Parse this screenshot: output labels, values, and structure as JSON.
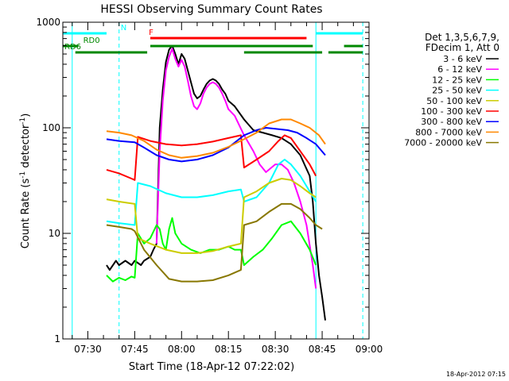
{
  "chart_data": {
    "type": "line",
    "title": "HESSI Observing Summary Count Rates",
    "xlabel": "Start Time (18-Apr-12 07:22:02)",
    "ylabel_main": "Count Rate (s",
    "ylabel_exp1": "-1",
    "ylabel_mid": " detector",
    "ylabel_exp2": "-1",
    "ylabel_end": ")",
    "y_scale": "log",
    "ylim": [
      1,
      1000
    ],
    "xlim": [
      "07:22",
      "09:00"
    ],
    "y_ticks": [
      "1",
      "10",
      "100",
      "1000"
    ],
    "x_ticks": [
      "07:30",
      "07:45",
      "08:00",
      "08:15",
      "08:30",
      "08:45",
      "09:00"
    ],
    "timestamp": "18-Apr-2012 07:15",
    "legend": {
      "header_1": "Det 1,3,5,6,7,9,",
      "header_2": "FDecim 1, Att 0",
      "placement": "right"
    },
    "series": [
      {
        "name": "3 - 6 keV",
        "color": "#000000",
        "points": [
          [
            "07:36",
            5
          ],
          [
            "07:37",
            4.5
          ],
          [
            "07:39",
            5.5
          ],
          [
            "07:40",
            5
          ],
          [
            "07:42",
            5.5
          ],
          [
            "07:44",
            5
          ],
          [
            "07:45",
            5.5
          ],
          [
            "07:47",
            5
          ],
          [
            "07:48",
            5.5
          ],
          [
            "07:50",
            6
          ],
          [
            "07:51",
            7
          ],
          [
            "07:52",
            8
          ],
          [
            "07:53",
            100
          ],
          [
            "07:54",
            230
          ],
          [
            "07:55",
            420
          ],
          [
            "07:56",
            550
          ],
          [
            "07:57",
            600
          ],
          [
            "07:58",
            500
          ],
          [
            "07:59",
            400
          ],
          [
            "08:00",
            500
          ],
          [
            "08:01",
            450
          ],
          [
            "08:02",
            350
          ],
          [
            "08:03",
            270
          ],
          [
            "08:04",
            210
          ],
          [
            "08:05",
            190
          ],
          [
            "08:06",
            200
          ],
          [
            "08:07",
            230
          ],
          [
            "08:08",
            260
          ],
          [
            "08:09",
            280
          ],
          [
            "08:10",
            290
          ],
          [
            "08:11",
            280
          ],
          [
            "08:12",
            260
          ],
          [
            "08:13",
            230
          ],
          [
            "08:14",
            210
          ],
          [
            "08:15",
            180
          ],
          [
            "08:17",
            160
          ],
          [
            "08:20",
            120
          ],
          [
            "08:23",
            95
          ],
          [
            "08:26",
            90
          ],
          [
            "08:29",
            85
          ],
          [
            "08:32",
            80
          ],
          [
            "08:35",
            70
          ],
          [
            "08:38",
            55
          ],
          [
            "08:41",
            35
          ],
          [
            "08:42",
            20
          ],
          [
            "08:43",
            8
          ],
          [
            "08:44",
            4
          ],
          [
            "08:45",
            2.5
          ],
          [
            "08:46",
            1.5
          ]
        ]
      },
      {
        "name": "6 - 12 keV",
        "color": "#ff00ff",
        "points": [
          [
            "07:52",
            8
          ],
          [
            "07:53",
            60
          ],
          [
            "07:54",
            180
          ],
          [
            "07:55",
            350
          ],
          [
            "07:56",
            470
          ],
          [
            "07:57",
            560
          ],
          [
            "07:58",
            450
          ],
          [
            "07:59",
            380
          ],
          [
            "08:00",
            440
          ],
          [
            "08:01",
            380
          ],
          [
            "08:02",
            280
          ],
          [
            "08:03",
            200
          ],
          [
            "08:04",
            160
          ],
          [
            "08:05",
            150
          ],
          [
            "08:06",
            170
          ],
          [
            "08:07",
            210
          ],
          [
            "08:08",
            240
          ],
          [
            "08:09",
            260
          ],
          [
            "08:10",
            270
          ],
          [
            "08:11",
            260
          ],
          [
            "08:12",
            240
          ],
          [
            "08:13",
            210
          ],
          [
            "08:14",
            180
          ],
          [
            "08:15",
            150
          ],
          [
            "08:17",
            130
          ],
          [
            "08:20",
            85
          ],
          [
            "08:23",
            60
          ],
          [
            "08:25",
            45
          ],
          [
            "08:27",
            38
          ],
          [
            "08:30",
            45
          ],
          [
            "08:32",
            45
          ],
          [
            "08:34",
            40
          ],
          [
            "08:36",
            30
          ],
          [
            "08:38",
            20
          ],
          [
            "08:40",
            12
          ],
          [
            "08:42",
            5
          ],
          [
            "08:43",
            3
          ]
        ]
      },
      {
        "name": "12 - 25 keV",
        "color": "#00ff00",
        "points": [
          [
            "07:36",
            4
          ],
          [
            "07:38",
            3.5
          ],
          [
            "07:40",
            3.8
          ],
          [
            "07:42",
            3.6
          ],
          [
            "07:44",
            3.9
          ],
          [
            "07:45",
            3.8
          ],
          [
            "07:46",
            10
          ],
          [
            "07:48",
            8
          ],
          [
            "07:50",
            9
          ],
          [
            "07:52",
            12
          ],
          [
            "07:53",
            11
          ],
          [
            "07:54",
            8
          ],
          [
            "07:55",
            7
          ],
          [
            "07:56",
            11
          ],
          [
            "07:57",
            14
          ],
          [
            "07:58",
            10
          ],
          [
            "08:00",
            8
          ],
          [
            "08:03",
            7
          ],
          [
            "08:06",
            6.5
          ],
          [
            "08:09",
            7
          ],
          [
            "08:12",
            7
          ],
          [
            "08:15",
            7.5
          ],
          [
            "08:17",
            7
          ],
          [
            "08:19",
            7
          ],
          [
            "08:20",
            5
          ],
          [
            "08:23",
            6
          ],
          [
            "08:26",
            7
          ],
          [
            "08:29",
            9
          ],
          [
            "08:32",
            12
          ],
          [
            "08:35",
            13
          ],
          [
            "08:38",
            10
          ],
          [
            "08:41",
            7
          ],
          [
            "08:43",
            5
          ]
        ]
      },
      {
        "name": "25 - 50 keV",
        "color": "#00ffff",
        "points": [
          [
            "07:36",
            13
          ],
          [
            "07:40",
            12.5
          ],
          [
            "07:45",
            12
          ],
          [
            "07:46",
            30
          ],
          [
            "07:50",
            28
          ],
          [
            "07:55",
            24
          ],
          [
            "08:00",
            22
          ],
          [
            "08:05",
            22
          ],
          [
            "08:10",
            23
          ],
          [
            "08:15",
            25
          ],
          [
            "08:19",
            26
          ],
          [
            "08:20",
            20
          ],
          [
            "08:24",
            22
          ],
          [
            "08:28",
            30
          ],
          [
            "08:31",
            45
          ],
          [
            "08:33",
            50
          ],
          [
            "08:35",
            45
          ],
          [
            "08:38",
            35
          ],
          [
            "08:41",
            25
          ],
          [
            "08:43",
            20
          ]
        ]
      },
      {
        "name": "50 - 100 keV",
        "color": "#cccc00",
        "points": [
          [
            "07:36",
            21
          ],
          [
            "07:40",
            20
          ],
          [
            "07:45",
            19
          ],
          [
            "07:46",
            9
          ],
          [
            "07:50",
            8
          ],
          [
            "07:55",
            7
          ],
          [
            "08:00",
            6.5
          ],
          [
            "08:05",
            6.5
          ],
          [
            "08:10",
            6.8
          ],
          [
            "08:15",
            7.5
          ],
          [
            "08:19",
            8
          ],
          [
            "08:20",
            22
          ],
          [
            "08:24",
            25
          ],
          [
            "08:28",
            30
          ],
          [
            "08:32",
            33
          ],
          [
            "08:35",
            32
          ],
          [
            "08:38",
            28
          ],
          [
            "08:41",
            24
          ],
          [
            "08:43",
            22
          ]
        ]
      },
      {
        "name": "100 - 300 keV",
        "color": "#ff0000",
        "points": [
          [
            "07:36",
            40
          ],
          [
            "07:40",
            37
          ],
          [
            "07:44",
            33
          ],
          [
            "07:45",
            32
          ],
          [
            "07:46",
            82
          ],
          [
            "07:50",
            75
          ],
          [
            "07:55",
            70
          ],
          [
            "08:00",
            68
          ],
          [
            "08:05",
            70
          ],
          [
            "08:10",
            74
          ],
          [
            "08:15",
            80
          ],
          [
            "08:19",
            85
          ],
          [
            "08:20",
            42
          ],
          [
            "08:24",
            50
          ],
          [
            "08:28",
            60
          ],
          [
            "08:31",
            75
          ],
          [
            "08:33",
            85
          ],
          [
            "08:35",
            80
          ],
          [
            "08:38",
            60
          ],
          [
            "08:41",
            45
          ],
          [
            "08:43",
            35
          ]
        ]
      },
      {
        "name": "300 - 800 keV",
        "color": "#0000ff",
        "points": [
          [
            "07:36",
            78
          ],
          [
            "07:40",
            75
          ],
          [
            "07:45",
            73
          ],
          [
            "07:48",
            65
          ],
          [
            "07:52",
            55
          ],
          [
            "07:56",
            50
          ],
          [
            "08:00",
            48
          ],
          [
            "08:05",
            50
          ],
          [
            "08:10",
            55
          ],
          [
            "08:15",
            65
          ],
          [
            "08:20",
            85
          ],
          [
            "08:24",
            95
          ],
          [
            "08:27",
            100
          ],
          [
            "08:30",
            98
          ],
          [
            "08:34",
            95
          ],
          [
            "08:37",
            90
          ],
          [
            "08:40",
            80
          ],
          [
            "08:43",
            70
          ],
          [
            "08:46",
            55
          ]
        ]
      },
      {
        "name": "800 - 7000 keV",
        "color": "#ff8800",
        "points": [
          [
            "07:36",
            93
          ],
          [
            "07:40",
            90
          ],
          [
            "07:44",
            85
          ],
          [
            "07:48",
            75
          ],
          [
            "07:52",
            62
          ],
          [
            "07:56",
            55
          ],
          [
            "08:00",
            52
          ],
          [
            "08:05",
            54
          ],
          [
            "08:10",
            58
          ],
          [
            "08:15",
            66
          ],
          [
            "08:20",
            78
          ],
          [
            "08:24",
            90
          ],
          [
            "08:28",
            110
          ],
          [
            "08:32",
            120
          ],
          [
            "08:35",
            120
          ],
          [
            "08:38",
            110
          ],
          [
            "08:41",
            100
          ],
          [
            "08:44",
            85
          ],
          [
            "08:46",
            70
          ]
        ]
      },
      {
        "name": "7000 - 20000 keV",
        "color": "#887700",
        "points": [
          [
            "07:36",
            12
          ],
          [
            "07:40",
            11.5
          ],
          [
            "07:44",
            11
          ],
          [
            "07:45",
            10.5
          ],
          [
            "07:48",
            7
          ],
          [
            "07:52",
            5
          ],
          [
            "07:56",
            3.7
          ],
          [
            "08:00",
            3.5
          ],
          [
            "08:05",
            3.5
          ],
          [
            "08:10",
            3.6
          ],
          [
            "08:15",
            4
          ],
          [
            "08:19",
            4.5
          ],
          [
            "08:20",
            12
          ],
          [
            "08:24",
            13
          ],
          [
            "08:28",
            16
          ],
          [
            "08:32",
            19
          ],
          [
            "08:35",
            19
          ],
          [
            "08:38",
            17
          ],
          [
            "08:41",
            14
          ],
          [
            "08:43",
            12
          ],
          [
            "08:45",
            11
          ]
        ]
      }
    ],
    "segments": [
      {
        "label": "N",
        "color": "#00ffff",
        "label_at": "07:40",
        "spans": [
          [
            "07:22",
            "07:36"
          ],
          [
            "08:43",
            "08:58"
          ]
        ]
      },
      {
        "label": "F",
        "color": "#ff0000",
        "label_at": "07:49",
        "spans": [
          [
            "07:50",
            "08:40"
          ]
        ]
      },
      {
        "label": "RD0",
        "color": "#008800",
        "label_at": "07:28",
        "spans": [
          [
            "07:22",
            "07:27"
          ],
          [
            "07:50",
            "08:42"
          ],
          [
            "08:52",
            "08:58"
          ]
        ]
      },
      {
        "label": "RD6",
        "color": "#008800",
        "label_at": "07:22",
        "spans": [
          [
            "07:26",
            "07:49"
          ],
          [
            "08:20",
            "08:45"
          ],
          [
            "08:47",
            "08:58"
          ]
        ]
      }
    ],
    "vlines": [
      {
        "t": "07:25",
        "color": "#00ffff",
        "style": "solid"
      },
      {
        "t": "07:40",
        "color": "#00ffff",
        "style": "dashed"
      },
      {
        "t": "08:43",
        "color": "#00ffff",
        "style": "solid"
      },
      {
        "t": "08:58",
        "color": "#00ffff",
        "style": "dashed"
      }
    ]
  }
}
